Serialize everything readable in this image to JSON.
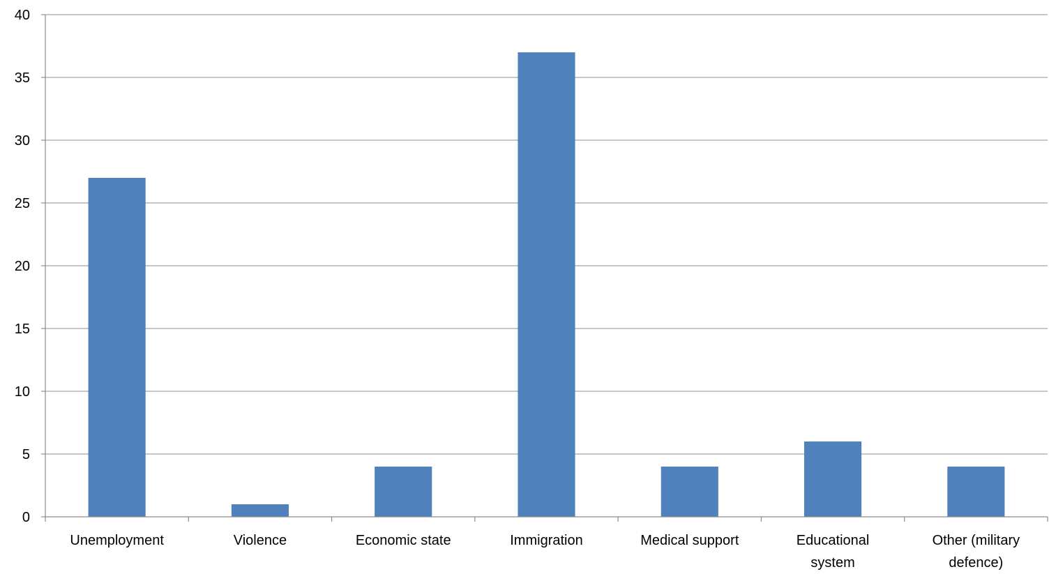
{
  "chart_data": {
    "type": "bar",
    "title": "",
    "xlabel": "",
    "ylabel": "",
    "categories": [
      [
        "Unemployment"
      ],
      [
        "Violence"
      ],
      [
        "Economic state"
      ],
      [
        "Immigration"
      ],
      [
        "Medical support"
      ],
      [
        "Educational",
        "system"
      ],
      [
        "Other (military",
        "defence)"
      ]
    ],
    "values": [
      27,
      1,
      4,
      37,
      4,
      6,
      4
    ],
    "ylim": [
      0,
      40
    ],
    "yticks": [
      "0",
      "5",
      "10",
      "15",
      "20",
      "25",
      "30",
      "35",
      "40"
    ],
    "grid": true,
    "legend": "none",
    "bar_color": "#4f81bd",
    "grid_color": "#8c8c8c"
  }
}
